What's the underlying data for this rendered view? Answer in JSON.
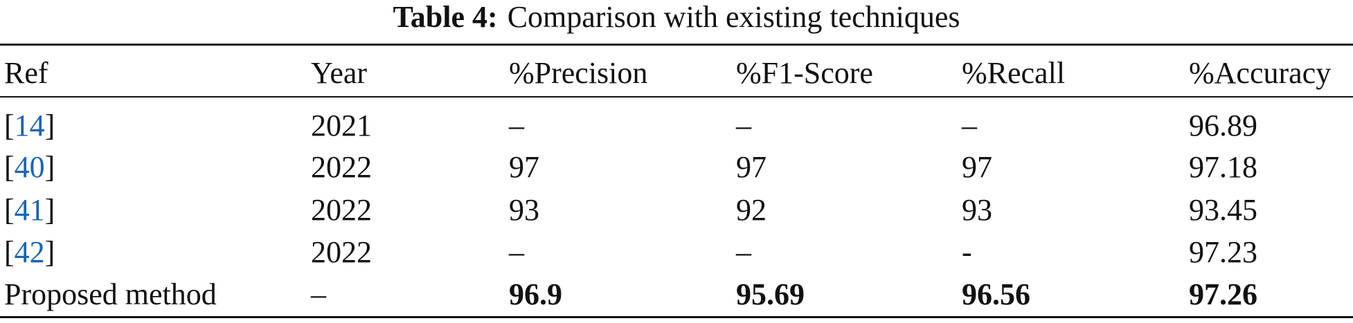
{
  "table": {
    "caption": {
      "label": "Table 4:",
      "text": "Comparison with existing techniques"
    },
    "header": [
      "Ref",
      "Year",
      "%Precision",
      "%F1-Score",
      "%Recall",
      "%Accuracy"
    ],
    "rows": [
      {
        "cells": [
          [
            "[",
            "14",
            "]"
          ],
          "2021",
          "–",
          "–",
          "–",
          "96.89"
        ],
        "bold": false
      },
      {
        "cells": [
          [
            "[",
            "40",
            "]"
          ],
          "2022",
          "97",
          "97",
          "97",
          "97.18"
        ],
        "bold": false
      },
      {
        "cells": [
          [
            "[",
            "41",
            "]"
          ],
          "2022",
          "93",
          "92",
          "93",
          "93.45"
        ],
        "bold": false
      },
      {
        "cells": [
          [
            "[",
            "42",
            "]"
          ],
          "2022",
          "–",
          "–",
          "-",
          "97.23"
        ],
        "bold": false
      },
      {
        "cells": [
          "Proposed method",
          "–",
          "96.9",
          "95.69",
          "96.56",
          "97.26"
        ],
        "bold": true
      }
    ],
    "link_color": "#1a64b4"
  }
}
